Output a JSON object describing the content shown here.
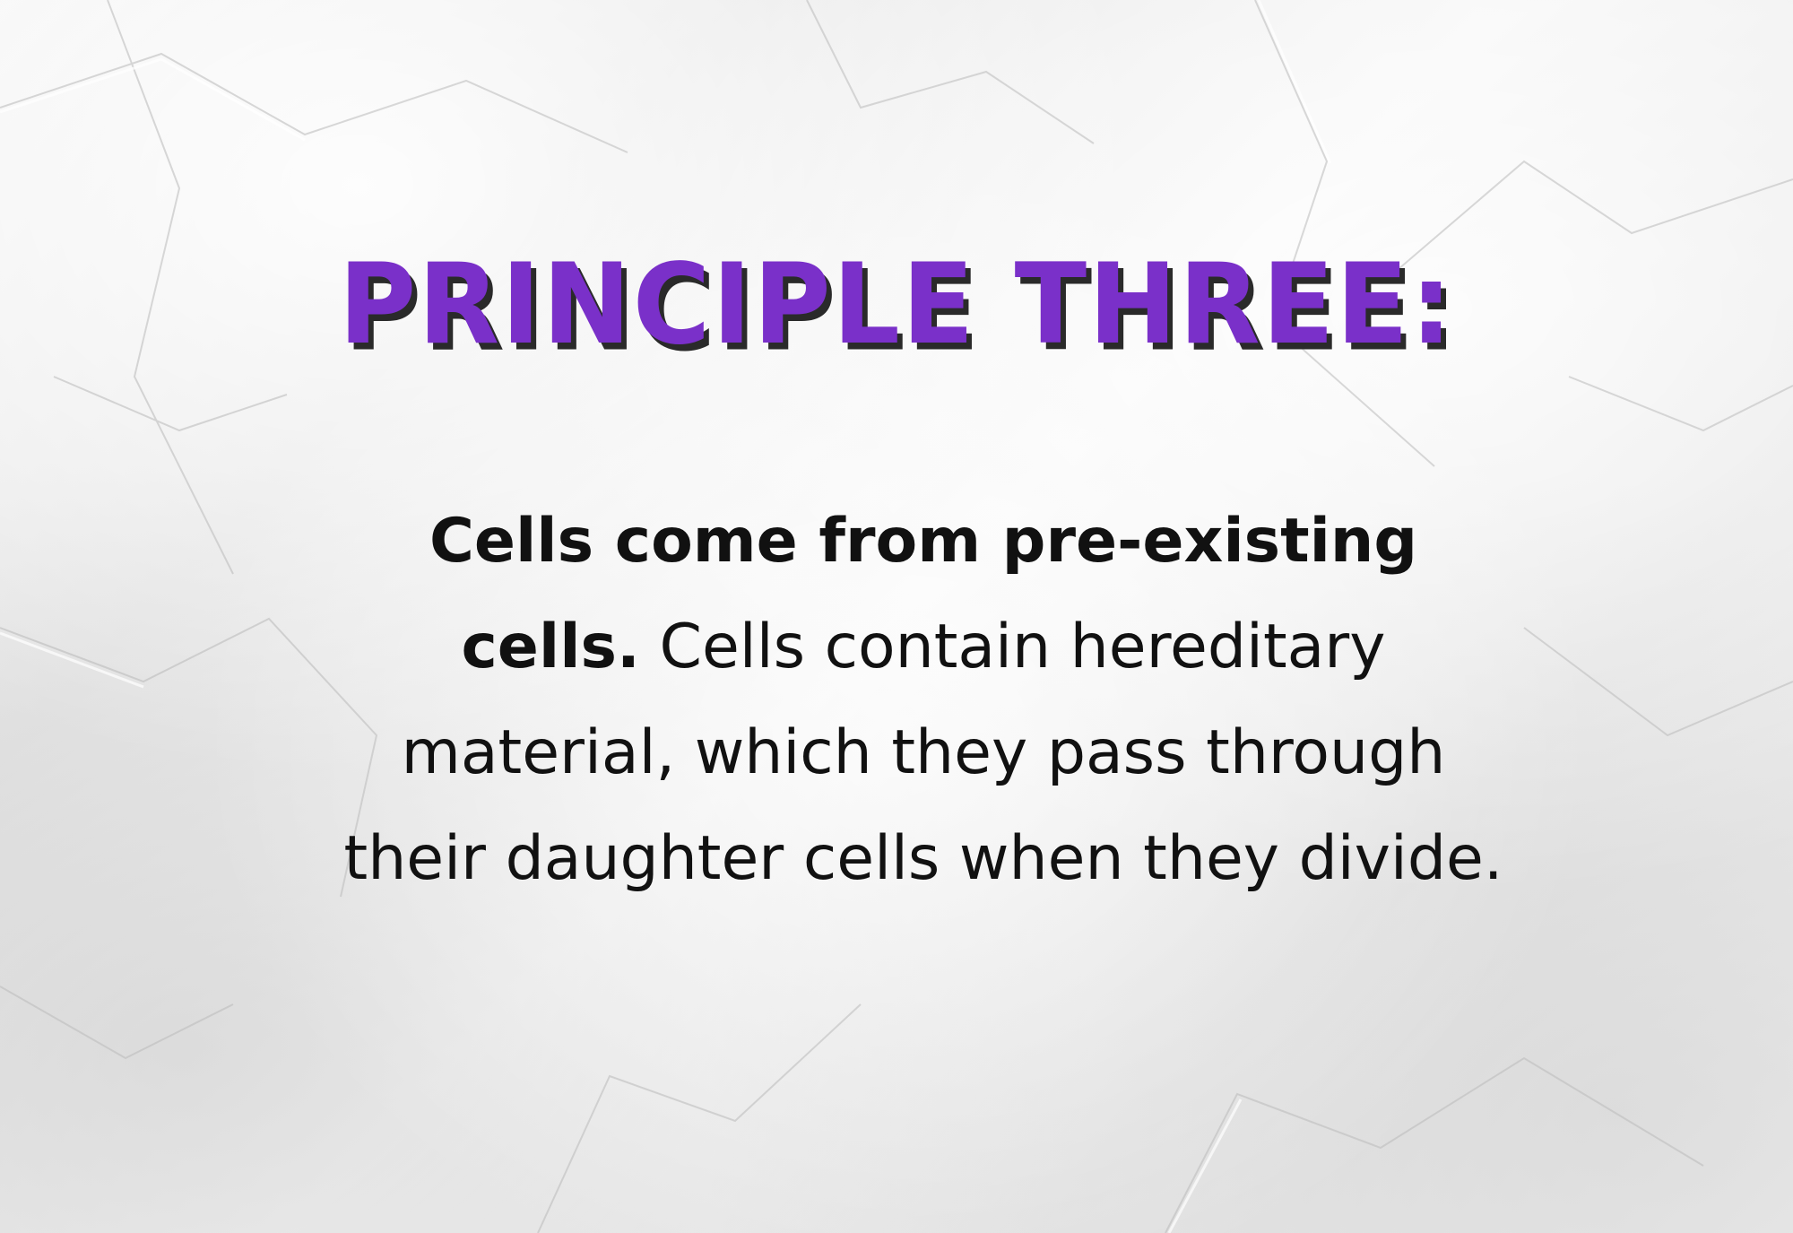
{
  "slide": {
    "title": "PRINCIPLE THREE:",
    "lead": "Cells come from pre-existing cells.",
    "body": "Cells contain hereditary material, which they pass through their daughter cells when they divide."
  },
  "colors": {
    "title": "#7a30c9",
    "title_shadow": "#2a2a2a",
    "text": "#111111",
    "background": "#efefef"
  }
}
